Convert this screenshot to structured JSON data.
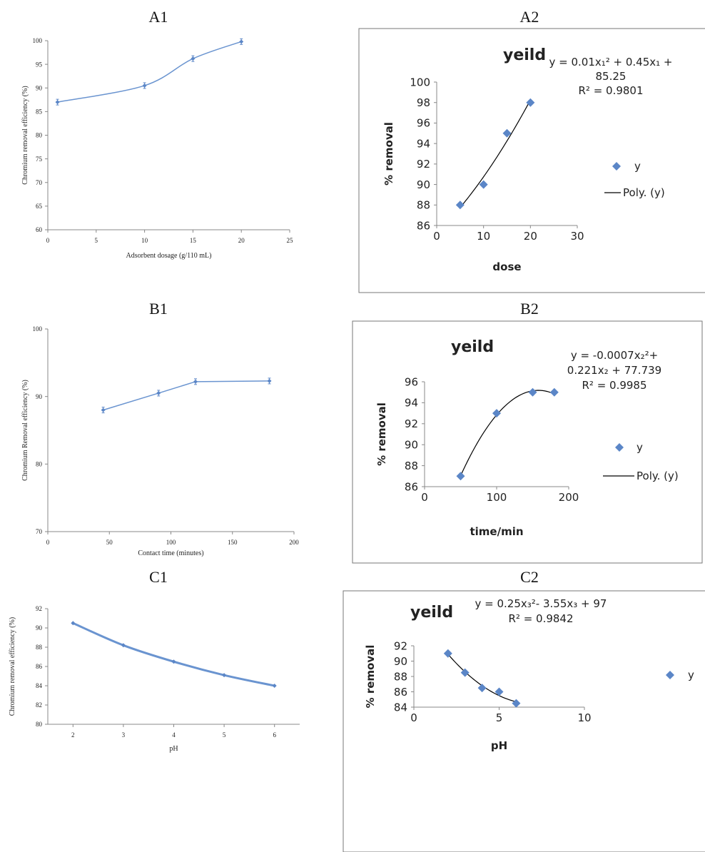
{
  "colors": {
    "series": "#5b86c7",
    "line": "#6a94d0",
    "poly": "#000000",
    "axis": "#888888",
    "frame": "#777777",
    "text": "#222222"
  },
  "chart_data": [
    {
      "id": "A1",
      "panel_label": "A1",
      "type": "line",
      "x": [
        1,
        10,
        15,
        20
      ],
      "series": [
        {
          "values": [
            87,
            90.5,
            96.2,
            99.8
          ]
        }
      ],
      "xlim": [
        0,
        25
      ],
      "ylim": [
        60,
        100
      ],
      "xticks": [
        0,
        5,
        10,
        15,
        20,
        25
      ],
      "yticks": [
        60,
        65,
        70,
        75,
        80,
        85,
        90,
        95,
        100
      ],
      "xlabel": "Adsorbent dosage (g/110 mL)",
      "ylabel": "Chromium removal efficiency (%)",
      "smooth": true,
      "error_bars": true,
      "grid": false,
      "framed": false
    },
    {
      "id": "A2",
      "panel_label": "A2",
      "type": "scatter",
      "title": "yeild",
      "x": [
        5,
        10,
        15,
        20
      ],
      "series": [
        {
          "name": "y",
          "values": [
            88,
            90,
            95,
            98
          ]
        }
      ],
      "trendline": {
        "kind": "polynomial-2",
        "legend": "Poly. (y)",
        "coef": [
          85.25,
          0.45,
          0.01
        ]
      },
      "equation_lines": [
        "y = 0.01x₁² + 0.45x₁ +",
        "85.25",
        "R² = 0.9801"
      ],
      "xlim": [
        0,
        30
      ],
      "ylim": [
        86,
        100
      ],
      "xticks": [
        0,
        10,
        20,
        30
      ],
      "yticks": [
        86,
        88,
        90,
        92,
        94,
        96,
        98,
        100
      ],
      "xlabel": "dose",
      "ylabel": "% removal",
      "legend_position": "right",
      "grid": false,
      "framed": true
    },
    {
      "id": "B1",
      "panel_label": "B1",
      "type": "line",
      "x": [
        45,
        90,
        120,
        180
      ],
      "series": [
        {
          "values": [
            88,
            90.5,
            92.2,
            92.3
          ]
        }
      ],
      "xlim": [
        0,
        200
      ],
      "ylim": [
        70,
        100
      ],
      "xticks": [
        0,
        50,
        100,
        150,
        200
      ],
      "yticks": [
        70,
        80,
        90,
        100
      ],
      "xlabel": "Contact time (minutes)",
      "ylabel": "Chromium Removal efficiency (%)",
      "smooth": false,
      "error_bars": true,
      "grid": false,
      "framed": false
    },
    {
      "id": "B2",
      "panel_label": "B2",
      "type": "scatter",
      "title": "yeild",
      "x": [
        50,
        100,
        150,
        180
      ],
      "series": [
        {
          "name": "y",
          "values": [
            87,
            93,
            95,
            95
          ]
        }
      ],
      "trendline": {
        "kind": "polynomial-2",
        "legend": "Poly. (y)",
        "coef": [
          77.739,
          0.221,
          -0.0007
        ]
      },
      "equation_lines": [
        "y = -0.0007x₂²+",
        "0.221x₂ + 77.739",
        "R² = 0.9985"
      ],
      "xlim": [
        0,
        200
      ],
      "ylim": [
        86,
        96
      ],
      "xticks": [
        0,
        100,
        200
      ],
      "yticks": [
        86,
        88,
        90,
        92,
        94,
        96
      ],
      "xlabel": "time/min",
      "ylabel": "% removal",
      "legend_position": "right",
      "grid": false,
      "framed": true
    },
    {
      "id": "C1",
      "panel_label": "C1",
      "type": "line",
      "x": [
        2,
        3,
        4,
        5,
        6
      ],
      "series": [
        {
          "values": [
            90.5,
            88.2,
            86.5,
            85.1,
            84
          ]
        }
      ],
      "xlim": [
        1.5,
        6.5
      ],
      "ylim": [
        80,
        92
      ],
      "xticks": [
        2,
        3,
        4,
        5,
        6
      ],
      "yticks": [
        80,
        82,
        84,
        86,
        88,
        90,
        92
      ],
      "xlabel": "pH",
      "ylabel": "Chromium removal efficiency (%)",
      "smooth": true,
      "error_bars": false,
      "grid": false,
      "framed": false
    },
    {
      "id": "C2",
      "panel_label": "C2",
      "type": "scatter",
      "title": "yeild",
      "x": [
        2,
        3,
        4,
        5,
        6
      ],
      "series": [
        {
          "name": "y",
          "values": [
            91,
            88.5,
            86.5,
            86,
            84.5
          ]
        }
      ],
      "trendline": {
        "kind": "polynomial-2",
        "legend": "",
        "coef": [
          97,
          -3.55,
          0.25
        ]
      },
      "equation_lines": [
        "y = 0.25x₃²- 3.55x₃ + 97",
        "R² = 0.9842"
      ],
      "xlim": [
        0,
        10
      ],
      "ylim": [
        84,
        92
      ],
      "xticks": [
        0,
        5,
        10
      ],
      "yticks": [
        84,
        86,
        88,
        90,
        92
      ],
      "xlabel": "pH",
      "ylabel": "% removal",
      "legend_position": "right",
      "grid": false,
      "framed": true
    }
  ]
}
